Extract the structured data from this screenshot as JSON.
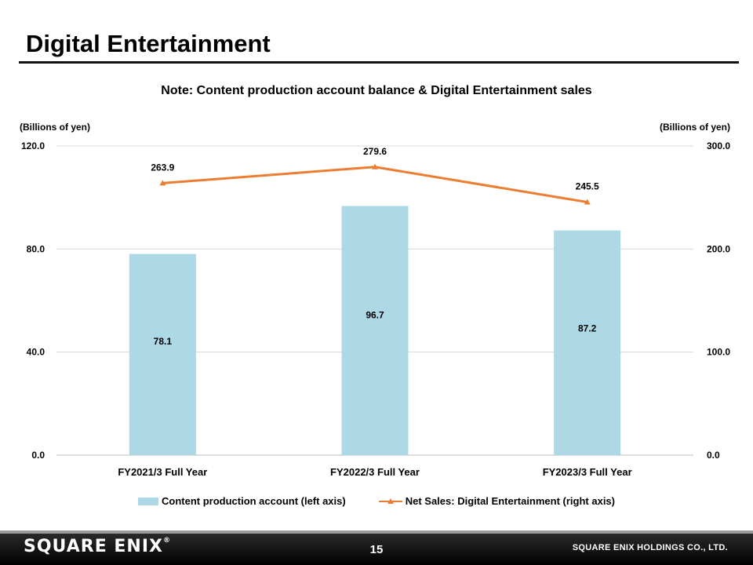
{
  "page": {
    "title": "Digital Entertainment",
    "page_number": "15",
    "company": "SQUARE ENIX HOLDINGS CO., LTD.",
    "logo_text": "SQUARE ENIX"
  },
  "chart_data": {
    "type": "bar",
    "title": "Note: Content production  account balance & Digital Entertainment  sales",
    "categories": [
      "FY2021/3 Full Year",
      "FY2022/3 Full Year",
      "FY2023/3 Full Year"
    ],
    "series": [
      {
        "name": "Content production account (left axis)",
        "type": "bar",
        "axis": "left",
        "color": "#add8e6",
        "values": [
          78.1,
          96.7,
          87.2
        ],
        "labels": [
          "78.1",
          "96.7",
          "87.2"
        ]
      },
      {
        "name": "Net Sales: Digital Entertainment (right axis)",
        "type": "line",
        "axis": "right",
        "color": "#ed7d31",
        "marker": "triangle",
        "values": [
          263.9,
          279.6,
          245.5
        ],
        "labels": [
          "263.9",
          "279.6",
          "245.5"
        ]
      }
    ],
    "left_axis": {
      "label": "(Billions of yen)",
      "ylim": [
        0,
        120
      ],
      "ticks": [
        "0.0",
        "40.0",
        "80.0",
        "120.0"
      ]
    },
    "right_axis": {
      "label": "(Billions of yen)",
      "ylim": [
        0,
        300
      ],
      "ticks": [
        "0.0",
        "100.0",
        "200.0",
        "300.0"
      ]
    },
    "grid": true,
    "legend_position": "bottom"
  }
}
